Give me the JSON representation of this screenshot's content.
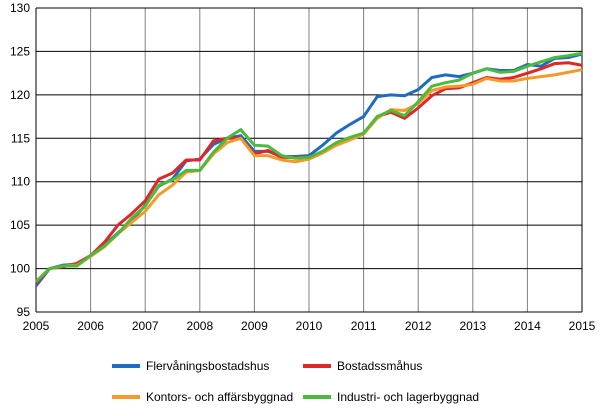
{
  "chart_data": {
    "type": "line",
    "title": "",
    "xlabel": "",
    "ylabel": "",
    "xlim": [
      2005,
      2015
    ],
    "ylim": [
      95,
      130
    ],
    "x_ticks": [
      "2005",
      "2006",
      "2007",
      "2008",
      "2009",
      "2010",
      "2011",
      "2012",
      "2013",
      "2014",
      "2015"
    ],
    "y_ticks": [
      "95",
      "100",
      "105",
      "110",
      "115",
      "120",
      "125",
      "130"
    ],
    "grid": true,
    "legend_position": "bottom",
    "x": [
      2005,
      2005.25,
      2005.5,
      2005.75,
      2006,
      2006.25,
      2006.5,
      2006.75,
      2007,
      2007.25,
      2007.5,
      2007.75,
      2008,
      2008.25,
      2008.5,
      2008.75,
      2009,
      2009.25,
      2009.5,
      2009.75,
      2010,
      2010.25,
      2010.5,
      2010.75,
      2011,
      2011.25,
      2011.5,
      2011.75,
      2012,
      2012.25,
      2012.5,
      2012.75,
      2013,
      2013.25,
      2013.5,
      2013.75,
      2014,
      2014.25,
      2014.5,
      2014.75,
      2015
    ],
    "series": [
      {
        "name": "Flervåningsbostadshus",
        "color": "#1f6bbf",
        "values": [
          98.0,
          100.0,
          100.4,
          100.5,
          101.5,
          102.7,
          104.1,
          105.5,
          107.3,
          109.5,
          110.3,
          112.4,
          112.6,
          114.3,
          115.0,
          115.3,
          113.5,
          113.5,
          112.9,
          112.9,
          113.0,
          114.2,
          115.6,
          116.6,
          117.5,
          119.8,
          120.0,
          119.9,
          120.6,
          122.0,
          122.3,
          122.1,
          122.5,
          123.0,
          122.8,
          122.8,
          123.5,
          123.3,
          124.2,
          124.3,
          124.7
        ]
      },
      {
        "name": "Bostadssmåhus",
        "color": "#e0262b",
        "values": [
          98.3,
          100.0,
          100.2,
          100.6,
          101.5,
          103.0,
          105.0,
          106.3,
          107.8,
          110.3,
          111.0,
          112.5,
          112.5,
          114.7,
          115.0,
          115.0,
          113.2,
          113.6,
          112.8,
          112.8,
          112.8,
          113.4,
          114.3,
          115.0,
          115.5,
          117.5,
          118.0,
          117.3,
          118.5,
          119.9,
          120.7,
          120.8,
          121.4,
          122.0,
          121.8,
          122.0,
          122.5,
          123.0,
          123.6,
          123.7,
          123.4
        ]
      },
      {
        "name": "Kontors- och affärsbyggnad",
        "color": "#f39a2a",
        "values": [
          98.5,
          100.0,
          100.3,
          100.4,
          101.4,
          102.5,
          104.0,
          105.3,
          106.6,
          108.5,
          109.6,
          111.1,
          111.3,
          113.2,
          114.5,
          115.0,
          113.0,
          113.0,
          112.5,
          112.3,
          112.6,
          113.3,
          114.2,
          114.8,
          115.5,
          117.3,
          118.3,
          118.2,
          119.0,
          120.5,
          120.9,
          121.0,
          121.2,
          121.9,
          121.6,
          121.6,
          121.9,
          122.1,
          122.3,
          122.6,
          122.9
        ]
      },
      {
        "name": "Industri- och lagerbyggnad",
        "color": "#4cba3c",
        "values": [
          98.5,
          100.0,
          100.3,
          100.3,
          101.5,
          102.6,
          104.0,
          105.8,
          107.2,
          109.6,
          110.2,
          111.3,
          111.3,
          113.4,
          115.0,
          116.0,
          114.2,
          114.1,
          113.0,
          112.7,
          112.8,
          113.5,
          114.5,
          115.1,
          115.6,
          117.5,
          118.2,
          117.6,
          119.2,
          121.0,
          121.4,
          121.7,
          122.5,
          123.0,
          122.6,
          122.7,
          123.3,
          123.8,
          124.3,
          124.5,
          124.8
        ]
      }
    ]
  }
}
